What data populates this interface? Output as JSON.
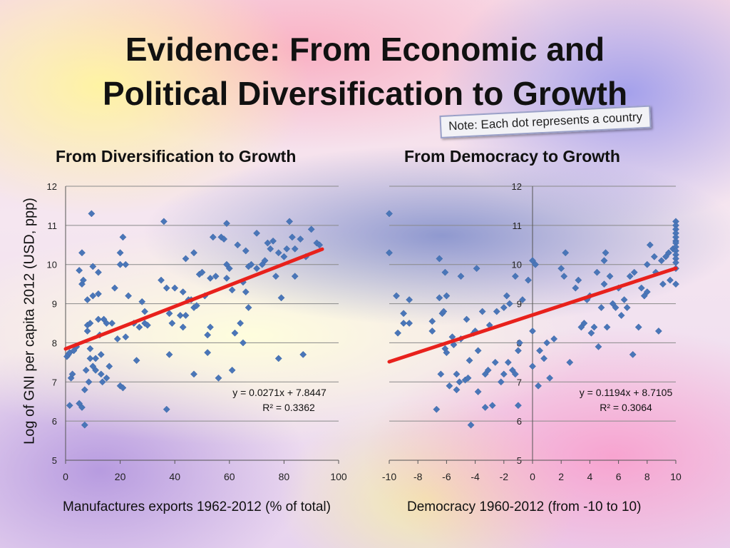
{
  "slide": {
    "title_line1": "Evidence: From Economic and",
    "title_line2": "Political Diversification to Growth",
    "note": "Note: Each dot represents a country",
    "y_axis_label": "Log of GNI per capita 2012 (USD, ppp)"
  },
  "colors": {
    "marker": "#4a76b8",
    "trendline": "#e8211c",
    "gridline": "#8a8a8a"
  },
  "chart_data": [
    {
      "type": "scatter",
      "title": "From Diversification to Growth",
      "xlabel": "Manufactures exports 1962-2012  (% of total)",
      "ylabel": "Log of GNI per capita 2012 (USD, ppp)",
      "xlim": [
        0,
        100
      ],
      "ylim": [
        5,
        12
      ],
      "xticks": [
        0,
        20,
        40,
        60,
        80,
        100
      ],
      "yticks": [
        5,
        6,
        7,
        8,
        9,
        10,
        11,
        12
      ],
      "grid": "horizontal",
      "trendline": {
        "slope": 0.0271,
        "intercept": 7.8447,
        "x_range": [
          0,
          94
        ]
      },
      "equation": "y = 0.0271x + 7.8447",
      "r2": "R² = 0.3362",
      "points": [
        [
          0.5,
          7.65
        ],
        [
          1,
          7.7
        ],
        [
          1.5,
          7.75
        ],
        [
          2,
          7.1
        ],
        [
          2.5,
          7.2
        ],
        [
          1.5,
          6.4
        ],
        [
          3,
          7.8
        ],
        [
          4,
          7.9
        ],
        [
          5,
          9.85
        ],
        [
          5,
          6.45
        ],
        [
          6,
          10.3
        ],
        [
          6,
          9.5
        ],
        [
          6,
          6.35
        ],
        [
          6.5,
          9.6
        ],
        [
          7,
          6.8
        ],
        [
          7,
          5.9
        ],
        [
          7.5,
          7.3
        ],
        [
          8,
          8.3
        ],
        [
          8,
          8.45
        ],
        [
          8,
          9.1
        ],
        [
          8.5,
          7.0
        ],
        [
          9,
          7.6
        ],
        [
          9,
          7.85
        ],
        [
          9,
          8.5
        ],
        [
          9.5,
          11.3
        ],
        [
          10,
          9.2
        ],
        [
          10,
          9.95
        ],
        [
          10,
          7.4
        ],
        [
          11,
          7.6
        ],
        [
          11,
          7.3
        ],
        [
          12,
          9.25
        ],
        [
          12,
          8.6
        ],
        [
          12,
          9.8
        ],
        [
          12.5,
          8.2
        ],
        [
          13,
          7.2
        ],
        [
          13,
          7.7
        ],
        [
          13.5,
          7.0
        ],
        [
          14,
          8.6
        ],
        [
          15,
          7.1
        ],
        [
          15,
          8.5
        ],
        [
          16,
          7.4
        ],
        [
          17,
          8.5
        ],
        [
          18,
          9.4
        ],
        [
          19,
          8.1
        ],
        [
          20,
          10.0
        ],
        [
          20,
          6.9
        ],
        [
          20,
          10.3
        ],
        [
          21,
          10.7
        ],
        [
          21,
          6.85
        ],
        [
          22,
          10.0
        ],
        [
          22,
          8.15
        ],
        [
          23,
          9.2
        ],
        [
          25,
          8.5
        ],
        [
          26,
          7.55
        ],
        [
          27,
          8.4
        ],
        [
          28,
          9.05
        ],
        [
          29,
          8.8
        ],
        [
          29,
          8.5
        ],
        [
          30,
          8.45
        ],
        [
          35,
          9.6
        ],
        [
          36,
          11.1
        ],
        [
          37,
          9.4
        ],
        [
          37,
          6.3
        ],
        [
          38,
          7.7
        ],
        [
          38,
          8.75
        ],
        [
          39,
          8.5
        ],
        [
          40,
          9.4
        ],
        [
          42,
          8.7
        ],
        [
          43,
          9.3
        ],
        [
          43,
          8.4
        ],
        [
          44,
          10.15
        ],
        [
          44,
          8.7
        ],
        [
          45,
          9.1
        ],
        [
          46,
          9.1
        ],
        [
          47,
          8.9
        ],
        [
          47,
          7.2
        ],
        [
          47,
          10.3
        ],
        [
          48,
          8.95
        ],
        [
          49,
          9.75
        ],
        [
          50,
          9.8
        ],
        [
          51,
          9.2
        ],
        [
          52,
          7.75
        ],
        [
          52,
          8.2
        ],
        [
          53,
          8.4
        ],
        [
          53,
          9.65
        ],
        [
          54,
          10.7
        ],
        [
          55,
          9.7
        ],
        [
          56,
          7.1
        ],
        [
          57,
          10.7
        ],
        [
          58,
          10.65
        ],
        [
          59,
          9.65
        ],
        [
          59,
          11.05
        ],
        [
          59,
          10.0
        ],
        [
          60,
          9.9
        ],
        [
          61,
          7.3
        ],
        [
          61,
          9.35
        ],
        [
          62,
          8.25
        ],
        [
          63,
          10.5
        ],
        [
          64,
          8.5
        ],
        [
          65,
          9.55
        ],
        [
          65,
          8.0
        ],
        [
          66,
          9.3
        ],
        [
          66,
          10.35
        ],
        [
          67,
          8.9
        ],
        [
          67,
          9.95
        ],
        [
          68,
          10.0
        ],
        [
          70,
          9.9
        ],
        [
          70,
          10.8
        ],
        [
          72,
          10.0
        ],
        [
          73,
          10.1
        ],
        [
          74,
          10.55
        ],
        [
          75,
          10.4
        ],
        [
          76,
          10.6
        ],
        [
          77,
          9.7
        ],
        [
          78,
          10.3
        ],
        [
          78,
          7.6
        ],
        [
          79,
          9.15
        ],
        [
          80,
          10.2
        ],
        [
          81,
          10.4
        ],
        [
          82,
          11.1
        ],
        [
          83,
          10.7
        ],
        [
          84,
          10.4
        ],
        [
          84,
          9.7
        ],
        [
          86,
          10.65
        ],
        [
          87,
          7.7
        ],
        [
          88,
          10.2
        ],
        [
          90,
          10.9
        ],
        [
          92,
          10.55
        ],
        [
          93,
          10.5
        ]
      ]
    },
    {
      "type": "scatter",
      "title": "From Democracy to Growth",
      "xlabel": "Democracy 1960-2012 (from -10 to 10)",
      "xlim": [
        -10,
        10
      ],
      "ylim": [
        5,
        12
      ],
      "xticks": [
        -10,
        -8,
        -6,
        -4,
        -2,
        0,
        2,
        4,
        6,
        8,
        10
      ],
      "yticks": [
        5,
        6,
        7,
        8,
        9,
        10,
        11,
        12
      ],
      "grid": "horizontal",
      "trendline": {
        "slope": 0.1194,
        "intercept": 8.7105,
        "x_range": [
          -10,
          10
        ]
      },
      "equation": "y = 0.1194x + 8.7105",
      "r2": "R² = 0.3064",
      "points": [
        [
          -10,
          11.3
        ],
        [
          -10,
          10.3
        ],
        [
          -9.5,
          9.2
        ],
        [
          -9.4,
          8.25
        ],
        [
          -9,
          8.5
        ],
        [
          -9,
          8.75
        ],
        [
          -8.6,
          9.1
        ],
        [
          -8.6,
          8.5
        ],
        [
          -7,
          8.55
        ],
        [
          -7,
          8.3
        ],
        [
          -6.7,
          6.3
        ],
        [
          -6.5,
          10.15
        ],
        [
          -6.5,
          9.15
        ],
        [
          -6.4,
          7.2
        ],
        [
          -6.3,
          8.75
        ],
        [
          -6.2,
          8.8
        ],
        [
          -6.1,
          7.85
        ],
        [
          -6.1,
          9.8
        ],
        [
          -6,
          9.2
        ],
        [
          -6,
          7.75
        ],
        [
          -5.8,
          6.9
        ],
        [
          -5.6,
          8.15
        ],
        [
          -5.5,
          7.95
        ],
        [
          -5.3,
          6.8
        ],
        [
          -5.3,
          7.2
        ],
        [
          -5.1,
          7.0
        ],
        [
          -5,
          8.1
        ],
        [
          -5,
          9.7
        ],
        [
          -4.7,
          7.05
        ],
        [
          -4.6,
          8.6
        ],
        [
          -4.5,
          7.1
        ],
        [
          -4.4,
          7.55
        ],
        [
          -4.3,
          5.9
        ],
        [
          -4.1,
          8.25
        ],
        [
          -4,
          8.3
        ],
        [
          -3.9,
          9.9
        ],
        [
          -3.8,
          7.8
        ],
        [
          -3.8,
          6.75
        ],
        [
          -3.5,
          8.8
        ],
        [
          -3.3,
          6.35
        ],
        [
          -3.3,
          7.2
        ],
        [
          -3.1,
          7.3
        ],
        [
          -3,
          8.45
        ],
        [
          -2.8,
          6.4
        ],
        [
          -2.6,
          7.5
        ],
        [
          -2.5,
          8.8
        ],
        [
          -2.2,
          7.0
        ],
        [
          -2,
          7.2
        ],
        [
          -2,
          8.9
        ],
        [
          -1.8,
          9.2
        ],
        [
          -1.7,
          7.5
        ],
        [
          -1.6,
          9.0
        ],
        [
          -1.4,
          7.3
        ],
        [
          -1.2,
          7.2
        ],
        [
          -1.2,
          9.7
        ],
        [
          -1,
          7.8
        ],
        [
          -1,
          6.4
        ],
        [
          -0.9,
          8.0
        ],
        [
          -0.7,
          9.1
        ],
        [
          -0.3,
          9.6
        ],
        [
          0,
          7.4
        ],
        [
          0,
          8.3
        ],
        [
          0,
          10.1
        ],
        [
          0.2,
          10.0
        ],
        [
          0.4,
          6.9
        ],
        [
          0.5,
          7.8
        ],
        [
          0.8,
          7.6
        ],
        [
          1,
          8.0
        ],
        [
          1.2,
          7.1
        ],
        [
          1.5,
          8.1
        ],
        [
          2,
          9.9
        ],
        [
          2.2,
          9.7
        ],
        [
          2.3,
          10.3
        ],
        [
          2.6,
          7.5
        ],
        [
          3,
          9.4
        ],
        [
          3.2,
          9.6
        ],
        [
          3.4,
          8.4
        ],
        [
          3.6,
          8.5
        ],
        [
          3.8,
          9.1
        ],
        [
          4,
          9.2
        ],
        [
          4.1,
          8.25
        ],
        [
          4.3,
          8.4
        ],
        [
          4.5,
          9.8
        ],
        [
          4.6,
          7.9
        ],
        [
          4.8,
          8.9
        ],
        [
          5,
          10.1
        ],
        [
          5,
          9.5
        ],
        [
          5.1,
          10.3
        ],
        [
          5.2,
          8.4
        ],
        [
          5.4,
          9.7
        ],
        [
          5.6,
          9.0
        ],
        [
          5.8,
          8.9
        ],
        [
          6,
          9.4
        ],
        [
          6.2,
          8.7
        ],
        [
          6.4,
          9.1
        ],
        [
          6.6,
          8.9
        ],
        [
          6.8,
          9.7
        ],
        [
          7,
          7.7
        ],
        [
          7.1,
          9.8
        ],
        [
          7.4,
          8.4
        ],
        [
          7.6,
          9.4
        ],
        [
          7.8,
          9.2
        ],
        [
          8,
          9.3
        ],
        [
          8,
          10.0
        ],
        [
          8.2,
          10.5
        ],
        [
          8.5,
          10.2
        ],
        [
          8.6,
          9.8
        ],
        [
          8.8,
          8.3
        ],
        [
          9,
          10.1
        ],
        [
          9.1,
          9.5
        ],
        [
          9.3,
          10.2
        ],
        [
          9.5,
          10.3
        ],
        [
          9.6,
          9.6
        ],
        [
          9.8,
          10.4
        ],
        [
          10,
          11.1
        ],
        [
          10,
          11.0
        ],
        [
          10,
          10.9
        ],
        [
          10,
          10.8
        ],
        [
          10,
          10.7
        ],
        [
          10,
          10.6
        ],
        [
          10,
          10.55
        ],
        [
          10,
          10.45
        ],
        [
          10,
          10.35
        ],
        [
          10,
          10.25
        ],
        [
          10,
          10.15
        ],
        [
          10,
          10.05
        ],
        [
          10,
          9.9
        ],
        [
          10,
          9.5
        ]
      ]
    }
  ]
}
